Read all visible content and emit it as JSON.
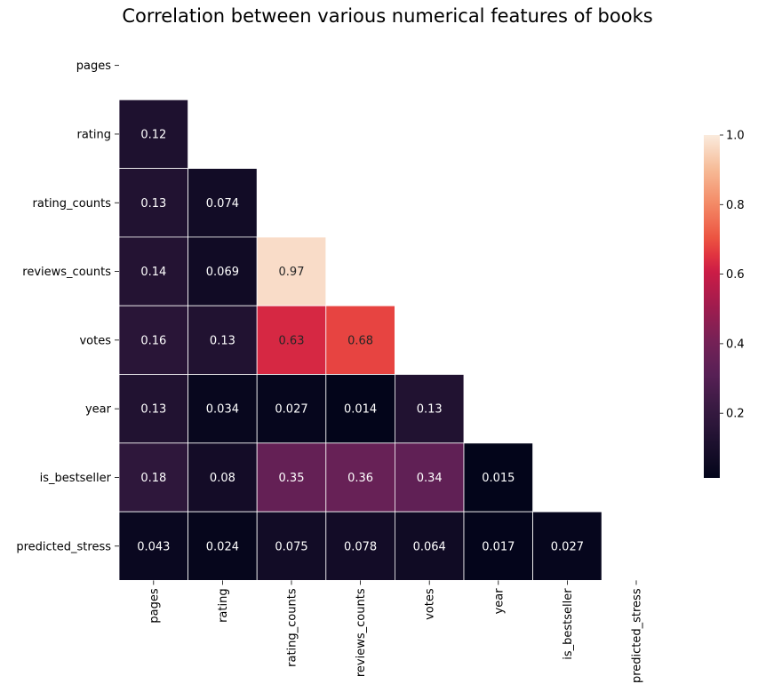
{
  "chart_data": {
    "type": "heatmap",
    "title": "Correlation between various numerical features of books",
    "xlabel": "",
    "ylabel": "",
    "mask": "upper-triangle-including-diagonal",
    "rows": [
      "pages",
      "rating",
      "rating_counts",
      "reviews_counts",
      "votes",
      "year",
      "is_bestseller",
      "predicted_stress"
    ],
    "columns": [
      "pages",
      "rating",
      "rating_counts",
      "reviews_counts",
      "votes",
      "year",
      "is_bestseller",
      "predicted_stress"
    ],
    "values": [
      [
        null,
        null,
        null,
        null,
        null,
        null,
        null,
        null
      ],
      [
        0.12,
        null,
        null,
        null,
        null,
        null,
        null,
        null
      ],
      [
        0.13,
        0.074,
        null,
        null,
        null,
        null,
        null,
        null
      ],
      [
        0.14,
        0.069,
        0.97,
        null,
        null,
        null,
        null,
        null
      ],
      [
        0.16,
        0.13,
        0.63,
        0.68,
        null,
        null,
        null,
        null
      ],
      [
        0.13,
        0.034,
        0.027,
        0.014,
        0.13,
        null,
        null,
        null
      ],
      [
        0.18,
        0.08,
        0.35,
        0.36,
        0.34,
        0.015,
        null,
        null
      ],
      [
        0.043,
        0.024,
        0.075,
        0.078,
        0.064,
        0.017,
        0.027,
        null
      ]
    ],
    "colormap": "rocket",
    "colorbar": {
      "range": [
        0.014,
        1.0
      ],
      "ticks": [
        0.2,
        0.4,
        0.6,
        0.8,
        1.0
      ],
      "tick_labels": [
        "0.2",
        "0.4",
        "0.6",
        "0.8",
        "1.0"
      ]
    },
    "grid": false
  }
}
